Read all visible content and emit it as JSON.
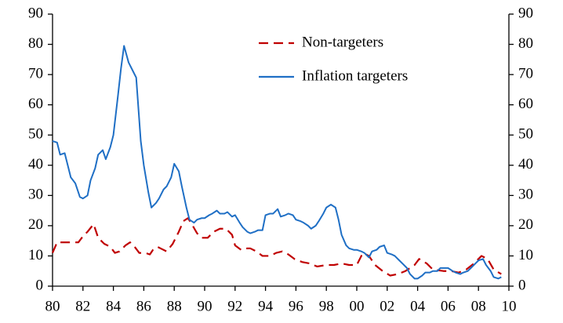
{
  "chart_data": {
    "type": "line",
    "legend": "upper right",
    "grid": false,
    "xlim": [
      80,
      110
    ],
    "xticks": [
      80,
      82,
      84,
      86,
      88,
      90,
      92,
      94,
      96,
      98,
      {
        "value": 100,
        "label": "00"
      },
      {
        "value": 102,
        "label": "02"
      },
      {
        "value": 104,
        "label": "04"
      },
      {
        "value": 106,
        "label": "06"
      },
      {
        "value": 108,
        "label": "08"
      },
      {
        "value": 110,
        "label": "10"
      }
    ],
    "ylim": [
      0,
      90
    ],
    "yticks": [
      0,
      10,
      20,
      30,
      40,
      50,
      60,
      70,
      80,
      90
    ],
    "y2lim": [
      0,
      90
    ],
    "y2ticks": [
      0,
      10,
      20,
      30,
      40,
      50,
      60,
      70,
      80,
      90
    ],
    "series": [
      {
        "name": "Non-targeters",
        "color": "#c00000",
        "dash": true,
        "x": [
          80.0,
          80.3,
          80.7,
          81.2,
          81.7,
          82.0,
          82.3,
          82.7,
          83.0,
          83.4,
          83.8,
          84.1,
          84.4,
          84.8,
          85.1,
          85.4,
          85.7,
          86.1,
          86.4,
          86.6,
          86.9,
          87.1,
          87.5,
          87.9,
          88.3,
          88.6,
          88.9,
          89.1,
          89.5,
          89.8,
          90.2,
          90.6,
          91.0,
          91.4,
          91.8,
          92.0,
          92.4,
          92.8,
          93.0,
          93.4,
          93.8,
          94.3,
          94.7,
          95.1,
          95.5,
          95.9,
          96.4,
          96.9,
          97.4,
          98.0,
          98.5,
          99.0,
          99.5,
          100.0,
          100.4,
          100.8,
          101.2,
          101.7,
          102.2,
          102.7,
          103.2,
          103.8,
          104.1,
          104.6,
          105.0,
          105.7,
          106.2,
          106.7,
          107.2,
          107.7,
          108.2,
          108.6,
          109.0,
          109.5
        ],
        "values": [
          11,
          14.5,
          14.5,
          14.5,
          14.5,
          16.5,
          18,
          20.5,
          16,
          14,
          13,
          11,
          11.5,
          13.5,
          14.5,
          13,
          11,
          11,
          10.5,
          12,
          13,
          12.5,
          11.5,
          14,
          18,
          21.5,
          22.5,
          21,
          17.5,
          16,
          16,
          18,
          19,
          19,
          17,
          13.5,
          12,
          12.5,
          12.5,
          11.5,
          10,
          10,
          11,
          11.5,
          10.5,
          9,
          8,
          7.5,
          6.5,
          7,
          7,
          7.5,
          7,
          7,
          11,
          10,
          7,
          5,
          3.5,
          4,
          5,
          7,
          9,
          7.5,
          5.5,
          5,
          5,
          4.5,
          5.5,
          7.5,
          10,
          9,
          5.5,
          4
        ]
      },
      {
        "name": "Inflation targeters",
        "color": "#1f6fc5",
        "dash": false,
        "x": [
          80.0,
          80.3,
          80.5,
          80.8,
          81.0,
          81.2,
          81.5,
          81.8,
          82.0,
          82.3,
          82.5,
          82.8,
          83.0,
          83.3,
          83.5,
          83.8,
          84.0,
          84.3,
          84.5,
          84.7,
          85.0,
          85.3,
          85.5,
          85.8,
          86.0,
          86.3,
          86.5,
          86.8,
          87.0,
          87.3,
          87.5,
          87.8,
          88.0,
          88.3,
          88.5,
          88.8,
          89.0,
          89.3,
          89.5,
          89.8,
          90.0,
          90.3,
          90.5,
          90.8,
          91.0,
          91.3,
          91.5,
          91.8,
          92.0,
          92.3,
          92.5,
          92.8,
          93.0,
          93.3,
          93.5,
          93.8,
          94.0,
          94.3,
          94.5,
          94.8,
          95.0,
          95.3,
          95.5,
          95.8,
          96.0,
          96.3,
          96.5,
          96.8,
          97.0,
          97.3,
          97.5,
          97.8,
          98.0,
          98.3,
          98.6,
          98.8,
          99.0,
          99.3,
          99.5,
          99.8,
          100.0,
          100.3,
          100.5,
          100.8,
          101.0,
          101.3,
          101.5,
          101.8,
          102.0,
          102.3,
          102.5,
          102.8,
          103.0,
          103.3,
          103.5,
          103.8,
          104.0,
          104.3,
          104.5,
          104.8,
          105.0,
          105.3,
          105.5,
          105.8,
          106.0,
          106.3,
          106.5,
          106.8,
          107.0,
          107.3,
          107.5,
          107.8,
          108.0,
          108.3,
          108.5,
          108.8,
          109.0,
          109.3,
          109.5
        ],
        "values": [
          48,
          47.5,
          43.5,
          44,
          40,
          36,
          34,
          29.5,
          29,
          30,
          35,
          39,
          43.5,
          45,
          42,
          46,
          50,
          63,
          72,
          79.5,
          74,
          71,
          69,
          48,
          40,
          31,
          26,
          27.5,
          29,
          32,
          33,
          36,
          40.5,
          38,
          33,
          26,
          22,
          21,
          22,
          22.5,
          22.5,
          23.5,
          24,
          25,
          24,
          24,
          24.5,
          23,
          23.5,
          21,
          19.5,
          18,
          17.5,
          18,
          18.5,
          18.5,
          23.5,
          24,
          24,
          25.5,
          23,
          23.5,
          24,
          23.5,
          22,
          21.5,
          21,
          20,
          19,
          20,
          21.5,
          24,
          26,
          27,
          26,
          22,
          17,
          13.5,
          12.5,
          12,
          12,
          11.5,
          11,
          9.5,
          11.5,
          12,
          13,
          13.5,
          11,
          10.5,
          10,
          8.5,
          7.5,
          6,
          4,
          2.5,
          2.5,
          3.5,
          4.5,
          4.5,
          5,
          5,
          6,
          6,
          6,
          5,
          4.5,
          4,
          4.5,
          5,
          6,
          7.5,
          8.5,
          9,
          7,
          5,
          3,
          2.5,
          3
        ]
      }
    ]
  }
}
